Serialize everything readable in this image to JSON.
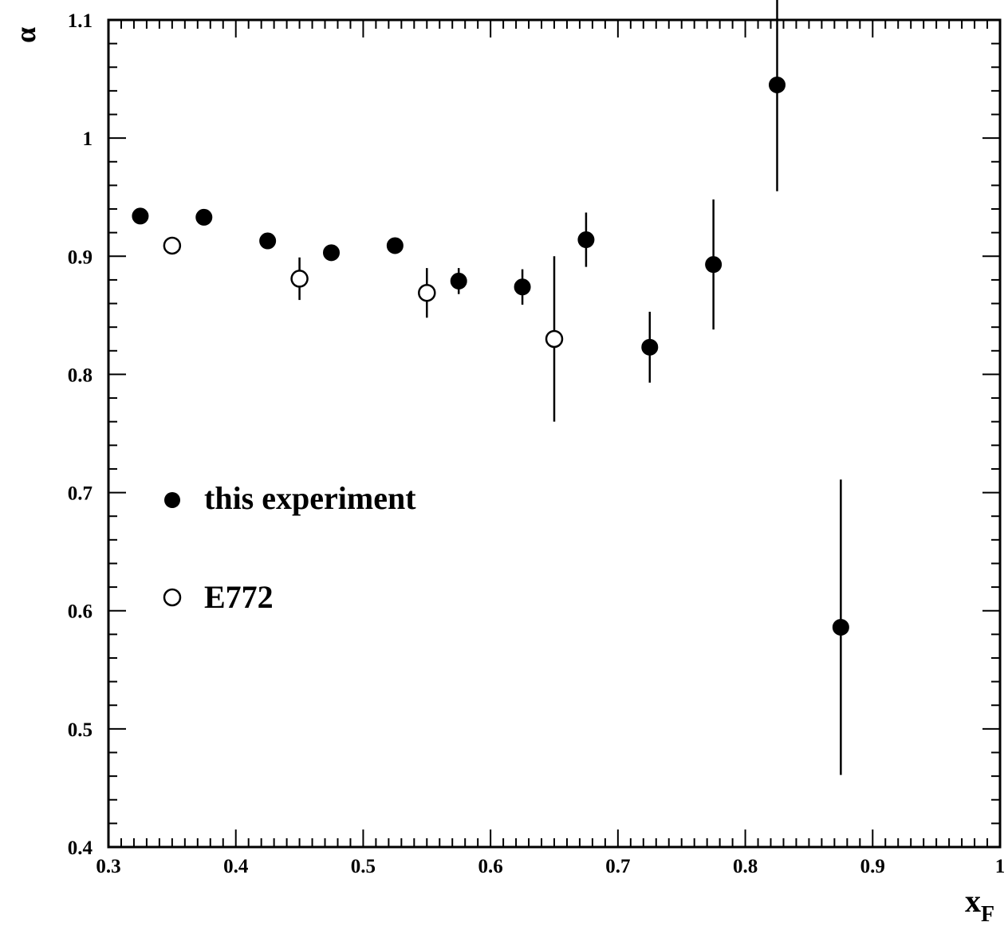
{
  "chart_data": {
    "type": "scatter",
    "xlabel": "x",
    "xlabel_sub": "F",
    "ylabel": "α",
    "xlim": [
      0.3,
      1.0
    ],
    "ylim": [
      0.4,
      1.1
    ],
    "x_tick_labels": [
      "0.3",
      "0.4",
      "0.5",
      "0.6",
      "0.7",
      "0.8",
      "0.9",
      "1"
    ],
    "y_tick_labels": [
      "0.4",
      "0.5",
      "0.6",
      "0.7",
      "0.8",
      "0.9",
      "1",
      "1.1"
    ],
    "legend_position": "left",
    "series": [
      {
        "name": "this experiment",
        "marker": "filled-circle",
        "points": [
          {
            "x": 0.325,
            "y": 0.934,
            "err": 0.006
          },
          {
            "x": 0.375,
            "y": 0.933,
            "err": 0.006
          },
          {
            "x": 0.425,
            "y": 0.913,
            "err": 0.006
          },
          {
            "x": 0.475,
            "y": 0.903,
            "err": 0.006
          },
          {
            "x": 0.525,
            "y": 0.909,
            "err": 0.006
          },
          {
            "x": 0.575,
            "y": 0.879,
            "err": 0.011
          },
          {
            "x": 0.625,
            "y": 0.874,
            "err": 0.015
          },
          {
            "x": 0.675,
            "y": 0.914,
            "err": 0.023
          },
          {
            "x": 0.725,
            "y": 0.823,
            "err": 0.03
          },
          {
            "x": 0.775,
            "y": 0.893,
            "err": 0.055
          },
          {
            "x": 0.825,
            "y": 1.045,
            "err": 0.09
          },
          {
            "x": 0.875,
            "y": 0.586,
            "err": 0.125
          }
        ]
      },
      {
        "name": "E772",
        "marker": "open-circle",
        "points": [
          {
            "x": 0.35,
            "y": 0.909,
            "err": 0.006
          },
          {
            "x": 0.45,
            "y": 0.881,
            "err": 0.018
          },
          {
            "x": 0.55,
            "y": 0.869,
            "err": 0.021
          },
          {
            "x": 0.65,
            "y": 0.83,
            "err": 0.07
          }
        ]
      }
    ]
  }
}
